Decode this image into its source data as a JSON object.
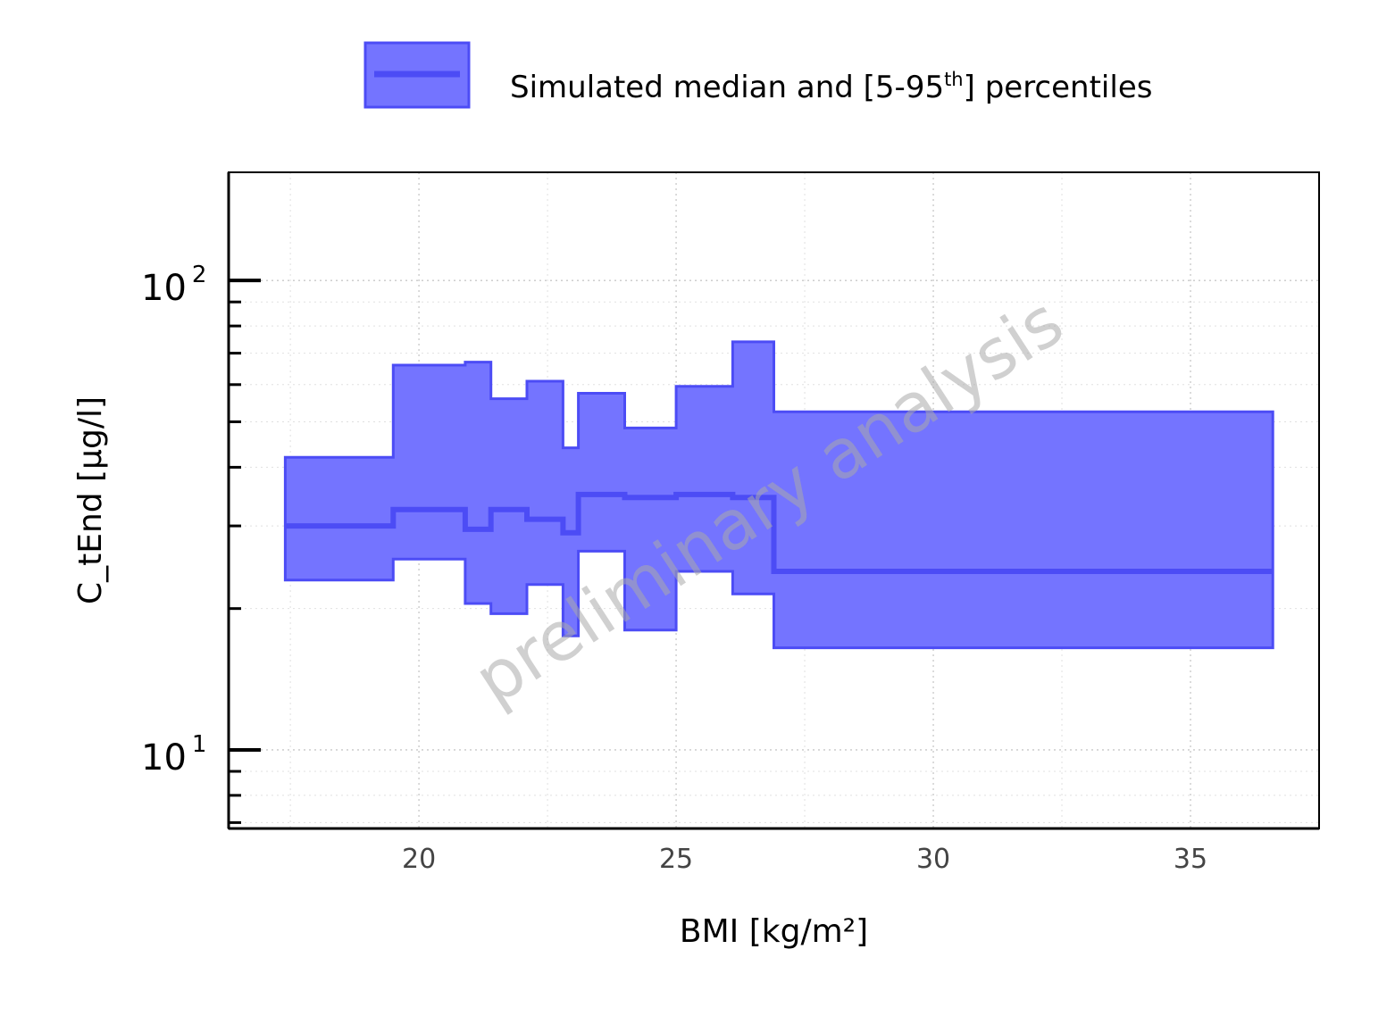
{
  "chart_data": {
    "type": "area",
    "x_scale": "linear",
    "y_scale": "log",
    "xlabel": "BMI [kg/m²]",
    "ylabel": "C_tEnd [µg/l]",
    "xlim": [
      16.3,
      37.5
    ],
    "ylim": [
      6.8,
      170
    ],
    "x_ticks": [
      {
        "value": 20,
        "label": "20"
      },
      {
        "value": 25,
        "label": "25"
      },
      {
        "value": 30,
        "label": "30"
      },
      {
        "value": 35,
        "label": "35"
      }
    ],
    "y_ticks": [
      {
        "value": 10,
        "base": "10",
        "exp": "1"
      },
      {
        "value": 100,
        "base": "10",
        "exp": "2"
      }
    ],
    "grid": true,
    "legend": {
      "position": "top-center",
      "text_main": "Simulated median and [5-95",
      "text_sup": "th",
      "text_end": "] percentiles"
    },
    "watermark": "preliminary analysis",
    "colors": {
      "band_fill": "#7474ff",
      "band_edge": "#4c4cf5",
      "median_line": "#4c4cf5"
    },
    "series": [
      {
        "bins": [
          {
            "x0": 17.4,
            "x1": 19.5,
            "median": 30.0,
            "p5": 23.0,
            "p95": 42.0
          },
          {
            "x0": 19.5,
            "x1": 20.9,
            "median": 32.5,
            "p5": 25.5,
            "p95": 66.0
          },
          {
            "x0": 20.9,
            "x1": 21.4,
            "median": 29.5,
            "p5": 20.5,
            "p95": 67.0
          },
          {
            "x0": 21.4,
            "x1": 22.1,
            "median": 32.5,
            "p5": 19.5,
            "p95": 56.0
          },
          {
            "x0": 22.1,
            "x1": 22.8,
            "median": 31.0,
            "p5": 22.5,
            "p95": 61.0
          },
          {
            "x0": 22.8,
            "x1": 23.1,
            "median": 29.0,
            "p5": 17.5,
            "p95": 44.0
          },
          {
            "x0": 23.1,
            "x1": 24.0,
            "median": 35.0,
            "p5": 26.5,
            "p95": 57.5
          },
          {
            "x0": 24.0,
            "x1": 25.0,
            "median": 34.5,
            "p5": 18.0,
            "p95": 48.5
          },
          {
            "x0": 25.0,
            "x1": 26.1,
            "median": 35.0,
            "p5": 24.0,
            "p95": 59.5
          },
          {
            "x0": 26.1,
            "x1": 26.9,
            "median": 34.5,
            "p5": 21.5,
            "p95": 74.0
          },
          {
            "x0": 26.9,
            "x1": 36.6,
            "median": 24.0,
            "p5": 16.5,
            "p95": 52.5
          }
        ]
      }
    ]
  }
}
